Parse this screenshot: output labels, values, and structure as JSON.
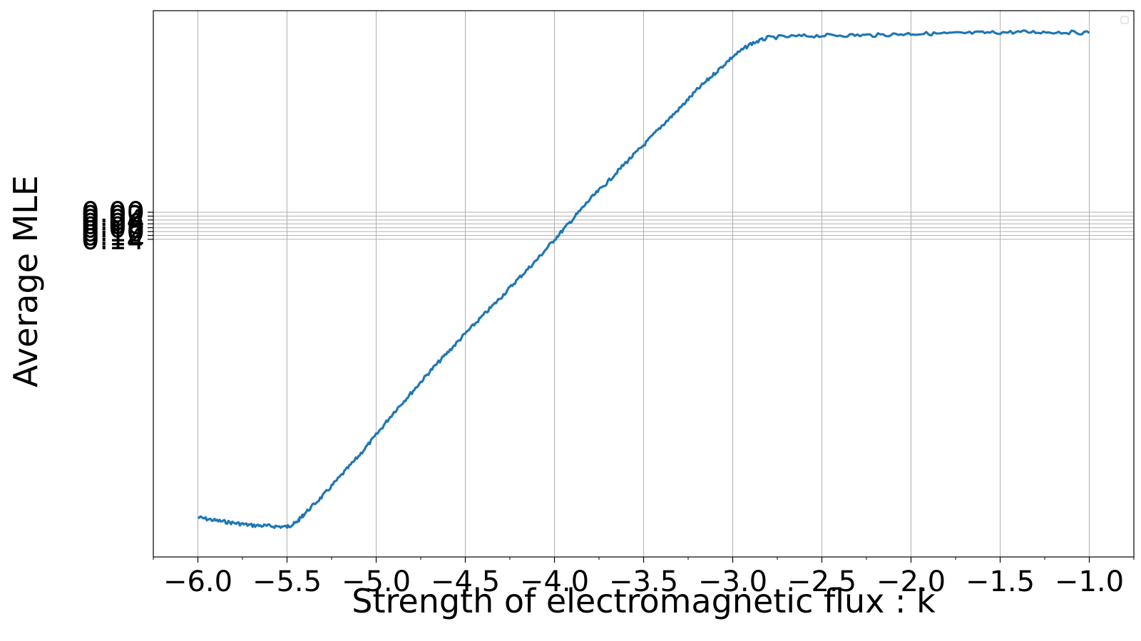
{
  "chart_data": {
    "type": "line",
    "title": "",
    "xlabel": "Strength of electromagnetic flux : k",
    "ylabel": "Average MLE",
    "xlim": [
      -6.25,
      -0.75
    ],
    "x_ticks": [
      -6.0,
      -5.5,
      -5.0,
      -4.5,
      -4.0,
      -3.5,
      -3.0,
      -2.5,
      -2.0,
      -1.5,
      -1.0
    ],
    "x_tick_labels": [
      "−6.0",
      "−5.5",
      "−5.0",
      "−4.5",
      "−4.0",
      "−3.5",
      "−3.0",
      "−2.5",
      "−2.0",
      "−1.5",
      "−1.0"
    ],
    "y_tick_labels": [
      "0.00",
      "0.02",
      "0.04",
      "0.06",
      "0.08",
      "0.10",
      "0.12",
      "0.14"
    ],
    "grid": true,
    "legend": "top-right (empty)",
    "series": [
      {
        "color": "#1f77b4",
        "points": [
          [
            -6.0,
            -0.37
          ],
          [
            -5.9,
            -0.374
          ],
          [
            -5.8,
            -0.377
          ],
          [
            -5.7,
            -0.38
          ],
          [
            -5.6,
            -0.381
          ],
          [
            -5.5,
            -0.382
          ],
          [
            -5.45,
            -0.377
          ],
          [
            -5.4,
            -0.365
          ],
          [
            -5.3,
            -0.343
          ],
          [
            -5.2,
            -0.318
          ],
          [
            -5.1,
            -0.293
          ],
          [
            -5.0,
            -0.266
          ],
          [
            -4.9,
            -0.237
          ],
          [
            -4.8,
            -0.212
          ],
          [
            -4.7,
            -0.186
          ],
          [
            -4.6,
            -0.162
          ],
          [
            -4.5,
            -0.138
          ],
          [
            -4.4,
            -0.115
          ],
          [
            -4.3,
            -0.092
          ],
          [
            -4.2,
            -0.068
          ],
          [
            -4.1,
            -0.045
          ],
          [
            -4.0,
            -0.019
          ],
          [
            -3.9,
            0.006
          ],
          [
            -3.8,
            0.032
          ],
          [
            -3.7,
            0.054
          ],
          [
            -3.6,
            0.078
          ],
          [
            -3.5,
            0.1
          ],
          [
            -3.4,
            0.124
          ],
          [
            -3.3,
            0.146
          ],
          [
            -3.2,
            0.17
          ],
          [
            -3.1,
            0.191
          ],
          [
            -3.0,
            0.212
          ],
          [
            -2.9,
            0.228
          ],
          [
            -2.8,
            0.236
          ],
          [
            -2.6,
            0.238
          ],
          [
            -2.4,
            0.239
          ],
          [
            -2.2,
            0.239
          ],
          [
            -2.0,
            0.241
          ],
          [
            -1.8,
            0.241
          ],
          [
            -1.6,
            0.242
          ],
          [
            -1.4,
            0.243
          ],
          [
            -1.2,
            0.243
          ],
          [
            -1.0,
            0.242
          ]
        ]
      }
    ]
  }
}
